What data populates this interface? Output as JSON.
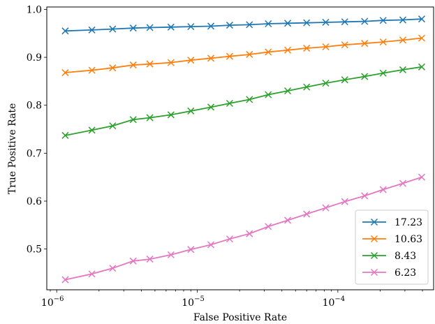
{
  "chart_data": {
    "type": "line",
    "xlabel": "False Positive Rate",
    "ylabel": "True Positive Rate",
    "xscale": "log",
    "xlim": [
      8.5e-07,
      0.00048
    ],
    "ylim": [
      0.415,
      1.005
    ],
    "yticks": [
      0.5,
      0.6,
      0.7,
      0.8,
      0.9,
      1.0
    ],
    "ytick_labels": [
      "0.5",
      "0.6",
      "0.7",
      "0.8",
      "0.9",
      "1.0"
    ],
    "xticks": [
      {
        "value": 1e-06,
        "base": "10",
        "exp": "−6"
      },
      {
        "value": 1e-05,
        "base": "10",
        "exp": "−5"
      },
      {
        "value": 0.0001,
        "base": "10",
        "exp": "−4"
      }
    ],
    "x": [
      1.15e-06,
      1.78e-06,
      2.5e-06,
      3.5e-06,
      4.6e-06,
      6.5e-06,
      9e-06,
      1.25e-05,
      1.7e-05,
      2.35e-05,
      3.2e-05,
      4.4e-05,
      6e-05,
      8.2e-05,
      0.000112,
      0.000155,
      0.00021,
      0.00029,
      0.000395
    ],
    "series": [
      {
        "name": "17.23",
        "color": "#1f77b4",
        "values": [
          0.955,
          0.957,
          0.959,
          0.961,
          0.962,
          0.963,
          0.964,
          0.965,
          0.967,
          0.968,
          0.97,
          0.971,
          0.972,
          0.973,
          0.974,
          0.975,
          0.977,
          0.978,
          0.98
        ]
      },
      {
        "name": "10.63",
        "color": "#ff7f0e",
        "values": [
          0.868,
          0.873,
          0.878,
          0.884,
          0.886,
          0.889,
          0.894,
          0.898,
          0.902,
          0.906,
          0.911,
          0.915,
          0.919,
          0.922,
          0.926,
          0.929,
          0.932,
          0.936,
          0.94
        ]
      },
      {
        "name": "8.43",
        "color": "#2ca02c",
        "values": [
          0.737,
          0.748,
          0.757,
          0.77,
          0.774,
          0.78,
          0.788,
          0.796,
          0.804,
          0.812,
          0.822,
          0.83,
          0.838,
          0.846,
          0.853,
          0.86,
          0.867,
          0.874,
          0.88
        ]
      },
      {
        "name": "6.23",
        "color": "#e377c2",
        "values": [
          0.436,
          0.448,
          0.46,
          0.475,
          0.479,
          0.488,
          0.499,
          0.509,
          0.521,
          0.532,
          0.547,
          0.56,
          0.573,
          0.586,
          0.599,
          0.611,
          0.624,
          0.637,
          0.65
        ]
      }
    ],
    "legend": {
      "placement": "bottom-right"
    },
    "grid": false
  }
}
